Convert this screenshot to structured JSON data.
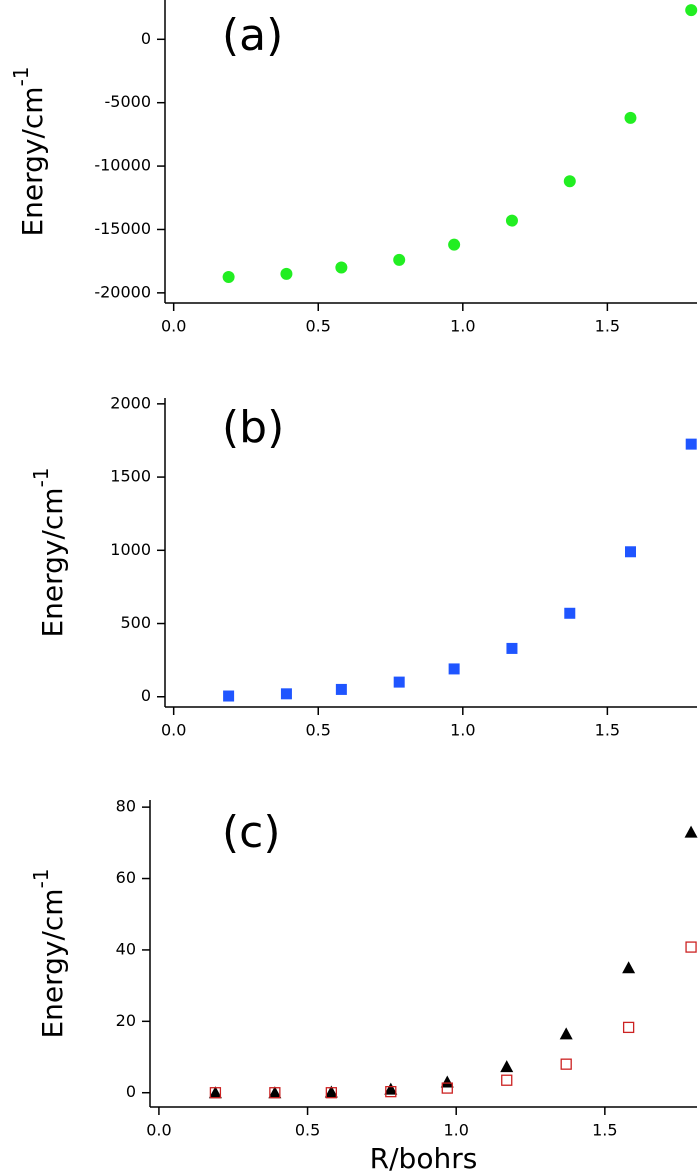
{
  "chart_data": [
    {
      "type": "scatter",
      "annotation": "(a)",
      "ylabel": "Energy/cm",
      "ylabel_sup": "-1",
      "x": [
        0.19,
        0.39,
        0.58,
        0.78,
        0.97,
        1.17,
        1.37,
        1.58,
        1.79
      ],
      "series": [
        {
          "color": "#22ee22",
          "marker": "circle",
          "values": [
            -18750,
            -18500,
            -18000,
            -17400,
            -16200,
            -14300,
            -11200,
            -6200,
            2300
          ]
        }
      ],
      "xlim": [
        -0.03,
        1.81
      ],
      "xticks": [
        {
          "value": 0,
          "label": "0.0"
        },
        0.5,
        {
          "value": 1,
          "label": "1.0"
        },
        1.5
      ],
      "ylim": [
        -20800,
        3100
      ],
      "yticks": [
        -20000,
        -15000,
        -10000,
        -5000,
        0
      ]
    },
    {
      "type": "scatter",
      "annotation": "(b)",
      "ylabel": "Energy/cm",
      "ylabel_sup": "-1",
      "x": [
        0.19,
        0.39,
        0.58,
        0.78,
        0.97,
        1.17,
        1.37,
        1.58,
        1.79
      ],
      "series": [
        {
          "color": "#1f55ff",
          "marker": "square",
          "values": [
            5,
            20,
            50,
            100,
            190,
            330,
            570,
            990,
            1725
          ]
        }
      ],
      "xlim": [
        -0.03,
        1.81
      ],
      "xticks": [
        {
          "value": 0,
          "label": "0.0"
        },
        0.5,
        {
          "value": 1,
          "label": "1.0"
        },
        1.5
      ],
      "ylim": [
        -70,
        2040
      ],
      "yticks": [
        0,
        500,
        1000,
        1500,
        2000
      ]
    },
    {
      "type": "scatter",
      "annotation": "(c)",
      "ylabel": "Energy/cm",
      "ylabel_sup": "-1",
      "xlabel": "R/bohrs",
      "x": [
        0.19,
        0.39,
        0.58,
        0.78,
        0.97,
        1.17,
        1.37,
        1.58,
        1.79
      ],
      "series": [
        {
          "color": "#000000",
          "marker": "triangle",
          "values": [
            0,
            0,
            0.2,
            1,
            3,
            7.3,
            16.5,
            35,
            73
          ]
        },
        {
          "color": "#cc2222",
          "marker": "open-square",
          "values": [
            0,
            0,
            0,
            0.3,
            1.3,
            3.5,
            8,
            18.3,
            40.8
          ]
        }
      ],
      "xlim": [
        -0.03,
        1.81
      ],
      "xticks": [
        {
          "value": 0,
          "label": "0.0"
        },
        0.5,
        {
          "value": 1,
          "label": "1.0"
        },
        1.5
      ],
      "ylim": [
        -4,
        82
      ],
      "yticks": [
        0,
        20,
        40,
        60,
        80
      ]
    }
  ]
}
